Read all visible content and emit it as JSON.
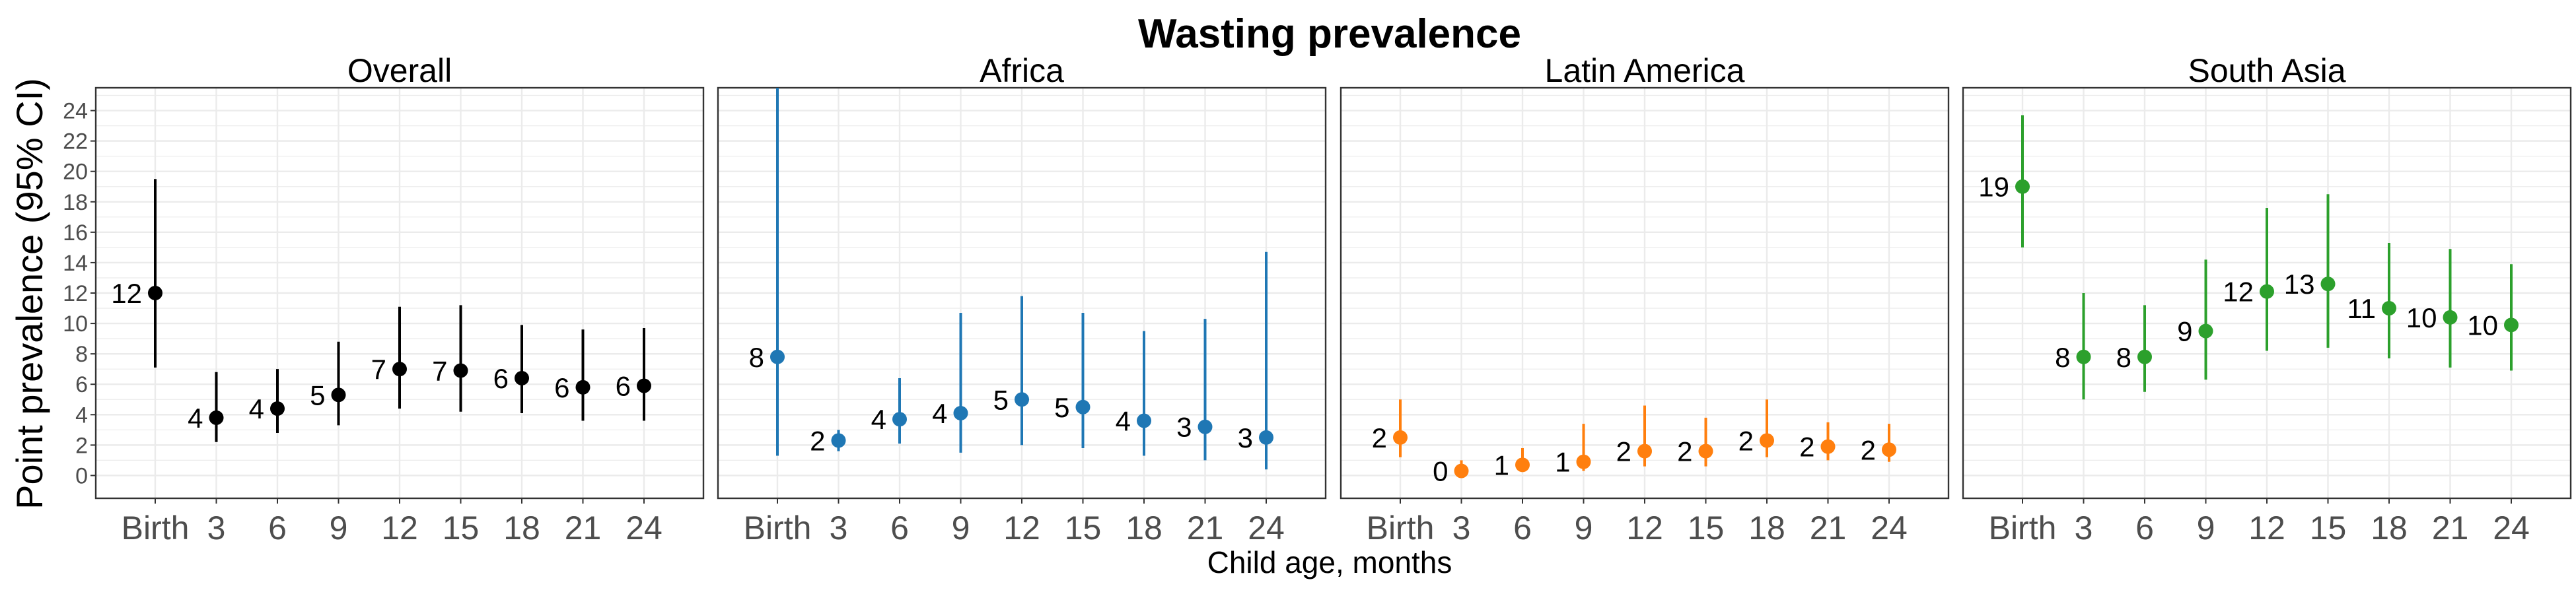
{
  "chart_data": {
    "type": "scatter",
    "title": "Wasting prevalence",
    "ylabel": "Point prevalence (95% CI)",
    "xlabel": "Child age, months",
    "categories": [
      "Birth",
      "3",
      "6",
      "9",
      "12",
      "15",
      "18",
      "21",
      "24"
    ],
    "ylim": [
      -1.5,
      25.5
    ],
    "yticks": [
      0,
      2,
      4,
      6,
      8,
      10,
      12,
      14,
      16,
      18,
      20,
      22,
      24
    ],
    "grid": true,
    "legend": "none",
    "panels": [
      {
        "name": "Overall",
        "color": "#000000",
        "points": [
          {
            "x": "Birth",
            "y": 12.0,
            "lower": 7.1,
            "upper": 19.5,
            "label": "12"
          },
          {
            "x": "3",
            "y": 3.8,
            "lower": 2.2,
            "upper": 6.8,
            "label": "4"
          },
          {
            "x": "6",
            "y": 4.4,
            "lower": 2.8,
            "upper": 7.0,
            "label": "4"
          },
          {
            "x": "9",
            "y": 5.3,
            "lower": 3.3,
            "upper": 8.8,
            "label": "5"
          },
          {
            "x": "12",
            "y": 7.0,
            "lower": 4.4,
            "upper": 11.1,
            "label": "7"
          },
          {
            "x": "15",
            "y": 6.9,
            "lower": 4.2,
            "upper": 11.2,
            "label": "7"
          },
          {
            "x": "18",
            "y": 6.4,
            "lower": 4.1,
            "upper": 9.9,
            "label": "6"
          },
          {
            "x": "21",
            "y": 5.8,
            "lower": 3.6,
            "upper": 9.6,
            "label": "6"
          },
          {
            "x": "24",
            "y": 5.9,
            "lower": 3.6,
            "upper": 9.7,
            "label": "6"
          }
        ]
      },
      {
        "name": "Africa",
        "color": "#1f77b4",
        "points": [
          {
            "x": "Birth",
            "y": 7.8,
            "lower": 1.3,
            "upper": 25.5,
            "label": "8"
          },
          {
            "x": "3",
            "y": 2.3,
            "lower": 1.6,
            "upper": 3.0,
            "label": "2"
          },
          {
            "x": "6",
            "y": 3.7,
            "lower": 2.1,
            "upper": 6.4,
            "label": "4"
          },
          {
            "x": "9",
            "y": 4.1,
            "lower": 1.5,
            "upper": 10.7,
            "label": "4"
          },
          {
            "x": "12",
            "y": 5.0,
            "lower": 2.0,
            "upper": 11.8,
            "label": "5"
          },
          {
            "x": "15",
            "y": 4.5,
            "lower": 1.8,
            "upper": 10.7,
            "label": "5"
          },
          {
            "x": "18",
            "y": 3.6,
            "lower": 1.3,
            "upper": 9.5,
            "label": "4"
          },
          {
            "x": "21",
            "y": 3.2,
            "lower": 1.0,
            "upper": 10.3,
            "label": "3"
          },
          {
            "x": "24",
            "y": 2.5,
            "lower": 0.4,
            "upper": 14.7,
            "label": "3"
          }
        ]
      },
      {
        "name": "Latin America",
        "color": "#ff7f0e",
        "points": [
          {
            "x": "Birth",
            "y": 2.5,
            "lower": 1.2,
            "upper": 5.0,
            "label": "2"
          },
          {
            "x": "3",
            "y": 0.3,
            "lower": 0.1,
            "upper": 1.0,
            "label": "0"
          },
          {
            "x": "6",
            "y": 0.7,
            "lower": 0.3,
            "upper": 1.8,
            "label": "1"
          },
          {
            "x": "9",
            "y": 0.9,
            "lower": 0.3,
            "upper": 3.4,
            "label": "1"
          },
          {
            "x": "12",
            "y": 1.6,
            "lower": 0.6,
            "upper": 4.6,
            "label": "2"
          },
          {
            "x": "15",
            "y": 1.6,
            "lower": 0.6,
            "upper": 3.8,
            "label": "2"
          },
          {
            "x": "18",
            "y": 2.3,
            "lower": 1.2,
            "upper": 5.0,
            "label": "2"
          },
          {
            "x": "21",
            "y": 1.9,
            "lower": 1.0,
            "upper": 3.5,
            "label": "2"
          },
          {
            "x": "24",
            "y": 1.7,
            "lower": 0.9,
            "upper": 3.4,
            "label": "2"
          }
        ]
      },
      {
        "name": "South Asia",
        "color": "#2ca02c",
        "points": [
          {
            "x": "Birth",
            "y": 19.0,
            "lower": 15.0,
            "upper": 23.7,
            "label": "19"
          },
          {
            "x": "3",
            "y": 7.8,
            "lower": 5.0,
            "upper": 12.0,
            "label": "8"
          },
          {
            "x": "6",
            "y": 7.8,
            "lower": 5.5,
            "upper": 11.2,
            "label": "8"
          },
          {
            "x": "9",
            "y": 9.5,
            "lower": 6.3,
            "upper": 14.2,
            "label": "9"
          },
          {
            "x": "12",
            "y": 12.1,
            "lower": 8.2,
            "upper": 17.6,
            "label": "12"
          },
          {
            "x": "15",
            "y": 12.6,
            "lower": 8.4,
            "upper": 18.5,
            "label": "13"
          },
          {
            "x": "18",
            "y": 11.0,
            "lower": 7.7,
            "upper": 15.3,
            "label": "11"
          },
          {
            "x": "21",
            "y": 10.4,
            "lower": 7.1,
            "upper": 14.9,
            "label": "10"
          },
          {
            "x": "24",
            "y": 9.9,
            "lower": 6.9,
            "upper": 13.9,
            "label": "10"
          }
        ]
      }
    ]
  }
}
